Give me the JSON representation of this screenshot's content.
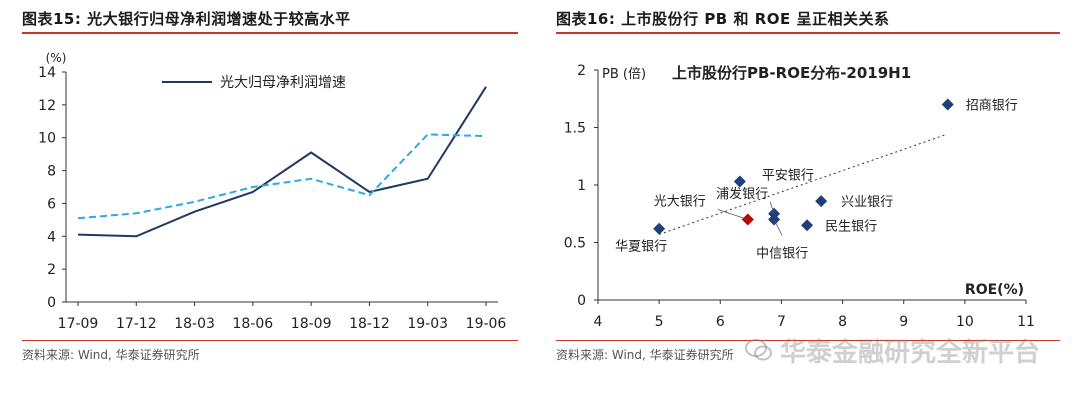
{
  "left": {
    "title": "图表15:  光大银行归母净利润增速处于较高水平",
    "source": "资料来源: Wind, 华泰证券研究所"
  },
  "right": {
    "title": "图表16:  上市股份行 PB 和 ROE 呈正相关关系",
    "source": "资料来源: Wind, 华泰证券研究所"
  },
  "watermark": "华泰金融研究全新平台",
  "chart_data": [
    {
      "type": "line",
      "unit_label": "(%)",
      "categories": [
        "17-09",
        "17-12",
        "18-03",
        "18-06",
        "18-09",
        "18-12",
        "19-03",
        "19-06"
      ],
      "ylim": [
        0,
        14
      ],
      "yticks": [
        0,
        2,
        4,
        6,
        8,
        10,
        12,
        14
      ],
      "legend": "top-left",
      "series": [
        {
          "name": "光大归母净利润增速",
          "style": "solid",
          "color": "#1f3864",
          "values": [
            4.1,
            4.0,
            5.5,
            6.7,
            9.1,
            6.7,
            7.5,
            13.1
          ]
        },
        {
          "name": "",
          "style": "dashed",
          "color": "#2eaadc",
          "values": [
            5.1,
            5.4,
            6.1,
            7.0,
            7.5,
            6.5,
            10.2,
            10.1
          ]
        }
      ]
    },
    {
      "type": "scatter",
      "title": "上市股份行PB-ROE分布-2019H1",
      "ylabel": "PB (倍)",
      "xlabel": "ROE(%)",
      "xlim": [
        4,
        11
      ],
      "ylim": [
        0,
        2
      ],
      "xticks": [
        4,
        5,
        6,
        7,
        8,
        9,
        10,
        11
      ],
      "yticks": [
        "0",
        "0.5",
        "1",
        "1.5",
        "2"
      ],
      "trendline": {
        "style": "dotted",
        "x": [
          5,
          9.7
        ],
        "y": [
          0.57,
          1.44
        ]
      },
      "points": [
        {
          "name": "招商银行",
          "x": 9.72,
          "y": 1.7,
          "color": "#1f3f7a"
        },
        {
          "name": "平安银行",
          "x": 6.32,
          "y": 1.03,
          "color": "#1f3f7a"
        },
        {
          "name": "兴业银行",
          "x": 7.65,
          "y": 0.86,
          "color": "#1f3f7a"
        },
        {
          "name": "浦发银行",
          "x": 6.88,
          "y": 0.75,
          "color": "#1f3f7a"
        },
        {
          "name": "中信银行",
          "x": 6.88,
          "y": 0.7,
          "color": "#1f3f7a"
        },
        {
          "name": "民生银行",
          "x": 7.42,
          "y": 0.65,
          "color": "#1f3f7a"
        },
        {
          "name": "光大银行",
          "x": 6.45,
          "y": 0.7,
          "color": "#c00000"
        },
        {
          "name": "华夏银行",
          "x": 5.0,
          "y": 0.62,
          "color": "#1f3f7a"
        }
      ]
    }
  ]
}
